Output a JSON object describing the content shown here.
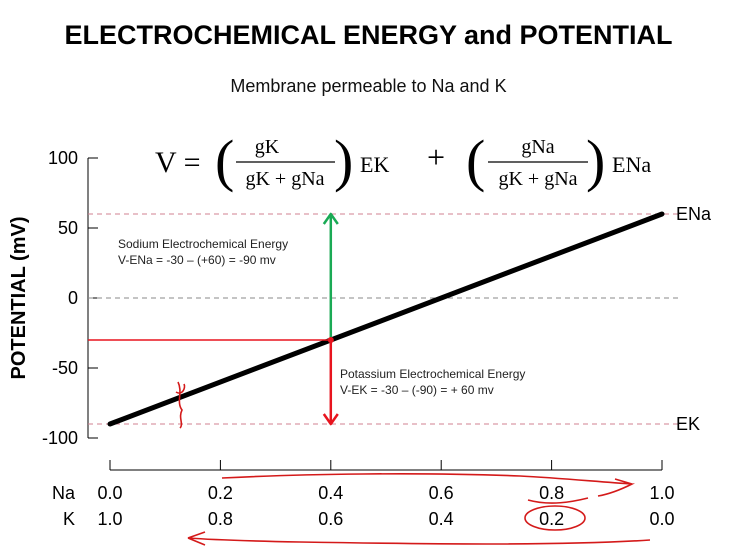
{
  "slide": {
    "title": "ELECTROCHEMICAL ENERGY and POTENTIAL",
    "subtitle": "Membrane permeable to Na and K"
  },
  "equation": {
    "lhs": "V =",
    "term1_num": "gK",
    "term1_den": "gK + gNa",
    "term1_label": "EK",
    "plus": "+",
    "term2_num": "gNa",
    "term2_den": "gK + gNa",
    "term2_label": "ENa"
  },
  "chart_data": {
    "type": "line",
    "ylabel": "POTENTIAL (mV)",
    "ylim": [
      -100,
      100
    ],
    "y_ticks": [
      "100",
      "50",
      "0",
      "-50",
      "-100"
    ],
    "y_tick_values": [
      100,
      50,
      0,
      -50,
      -100
    ],
    "x_rows": [
      {
        "label": "Na",
        "ticks": [
          "0.0",
          "0.2",
          "0.4",
          "0.6",
          "0.8",
          "1.0"
        ]
      },
      {
        "label": "K",
        "ticks": [
          "1.0",
          "0.8",
          "0.6",
          "0.4",
          "0.2",
          "0.0"
        ]
      }
    ],
    "xlim": [
      0,
      1
    ],
    "series": [
      {
        "values": [
          [
            0.0,
            -90
          ],
          [
            1.0,
            60
          ]
        ],
        "color": "#000000"
      }
    ],
    "reference_lines": [
      {
        "label": "ENa",
        "y": 60,
        "color": "#d08090"
      },
      {
        "label": "EK",
        "y": -90,
        "color": "#d08090"
      },
      {
        "label": "",
        "y": 0,
        "color": "#888888"
      }
    ],
    "marker": {
      "x": 0.4,
      "y": -30,
      "color": "#e8141e"
    },
    "arrows": [
      {
        "from": -30,
        "to": 60,
        "x": 0.4,
        "color": "#1aaa55"
      },
      {
        "from": -30,
        "to": -90,
        "x": 0.4,
        "color": "#e8141e"
      }
    ],
    "annotations": [
      {
        "lines": [
          "Sodium  Electrochemical Energy",
          "V-ENa = -30 – (+60) = -90 mv"
        ]
      },
      {
        "lines": [
          "Potassium Electrochemical Energy",
          "V-EK = -30 – (-90) = + 60 mv"
        ]
      }
    ],
    "grid": false
  }
}
